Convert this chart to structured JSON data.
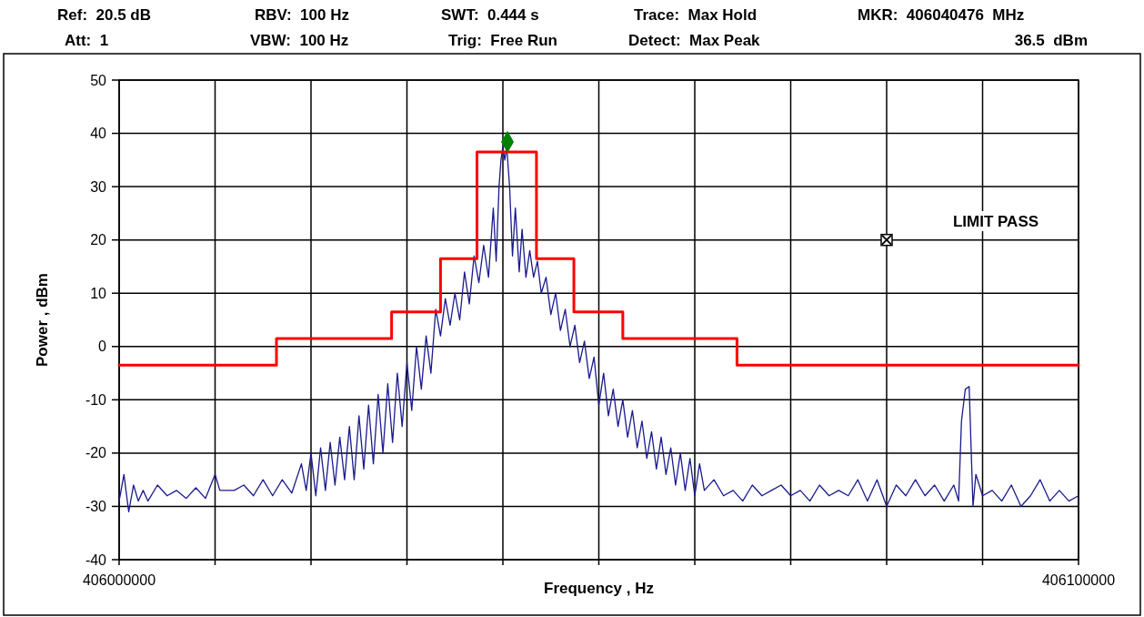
{
  "chart_data": {
    "type": "line",
    "xlabel": "Frequency , Hz",
    "ylabel": "Power , dBm",
    "xlim": [
      406000000,
      406100000
    ],
    "xticks": [
      406000000,
      {
        "value": 406010000,
        "label": null
      },
      {
        "value": 406020000,
        "label": null
      },
      {
        "value": 406030000,
        "label": null
      },
      {
        "value": 406040000,
        "label": null
      },
      {
        "value": 406050000,
        "label": null
      },
      {
        "value": 406060000,
        "label": null
      },
      {
        "value": 406070000,
        "label": null
      },
      {
        "value": 406080000,
        "label": null
      },
      {
        "value": 406090000,
        "label": null
      },
      406100000
    ],
    "ylim": [
      -40,
      50
    ],
    "yticks": [
      -40,
      -30,
      -20,
      -10,
      0,
      10,
      20,
      30,
      40,
      50
    ],
    "grid": true,
    "annotations": [
      "Ref:  20.5 dB",
      "RBV:  100 Hz",
      "SWT:  0.444 s",
      "Trace:  Max Hold",
      "MKR:  406040476  MHz",
      "Att:  1",
      "VBW:  100 Hz",
      "Trig:  Free Run",
      "Detect:  Max Peak",
      "36.5  dBm",
      "LIMIT PASS"
    ],
    "series": [
      {
        "color": "#1a1a8c",
        "marker": "none",
        "line_style": "solid",
        "x": [
          406000000,
          406000500,
          406001000,
          406001500,
          406002000,
          406002500,
          406003000,
          406004000,
          406005000,
          406006000,
          406007000,
          406008000,
          406009000,
          406010000,
          406010500,
          406012000,
          406013000,
          406014000,
          406015000,
          406016000,
          406017000,
          406018000,
          406019000,
          406019500,
          406020000,
          406020500,
          406021000,
          406021500,
          406022000,
          406022500,
          406023000,
          406023500,
          406024000,
          406024500,
          406025000,
          406025500,
          406026000,
          406026500,
          406027000,
          406027500,
          406028000,
          406028500,
          406029000,
          406029500,
          406030000,
          406030500,
          406031000,
          406031500,
          406032000,
          406032500,
          406033000,
          406033500,
          406034000,
          406034500,
          406035000,
          406035500,
          406036000,
          406036500,
          406037000,
          406037500,
          406038000,
          406038500,
          406039000,
          406039300,
          406039600,
          406039800,
          406040000,
          406040200,
          406040400,
          406040700,
          406041000,
          406041300,
          406041700,
          406042000,
          406042400,
          406042800,
          406043200,
          406043600,
          406044000,
          406044500,
          406045000,
          406045500,
          406046000,
          406046500,
          406047000,
          406047500,
          406048000,
          406048500,
          406049000,
          406049500,
          406050000,
          406050500,
          406051000,
          406051500,
          406052000,
          406052500,
          406053000,
          406053500,
          406054000,
          406054500,
          406055000,
          406055500,
          406056000,
          406056500,
          406057000,
          406057500,
          406058000,
          406058500,
          406059000,
          406059500,
          406060000,
          406060500,
          406061000,
          406062000,
          406063000,
          406064000,
          406065000,
          406066000,
          406067000,
          406068000,
          406069000,
          406070000,
          406071000,
          406072000,
          406073000,
          406074000,
          406075000,
          406076000,
          406077000,
          406078000,
          406079000,
          406080000,
          406081000,
          406082000,
          406083000,
          406084000,
          406085000,
          406086000,
          406087000,
          406087500,
          406087800,
          406088200,
          406088600,
          406089000,
          406089300,
          406090000,
          406091000,
          406092000,
          406093000,
          406094000,
          406095000,
          406096000,
          406097000,
          406098000,
          406099000,
          406100000
        ],
        "values": [
          -29,
          -24,
          -31,
          -26,
          -29,
          -27,
          -29,
          -26,
          -28,
          -27,
          -28.5,
          -26.5,
          -28.5,
          -24,
          -27,
          -27,
          -26,
          -28,
          -25,
          -28,
          -25,
          -27.5,
          -22,
          -27,
          -20,
          -28,
          -19,
          -27,
          -18,
          -26,
          -17,
          -25,
          -15,
          -25,
          -13,
          -23,
          -11,
          -22,
          -9,
          -20,
          -7,
          -18,
          -5,
          -15,
          -3,
          -12,
          0,
          -8,
          2,
          -5,
          7,
          2,
          9,
          4,
          10,
          5,
          14,
          8,
          17,
          12,
          19,
          13,
          26,
          16,
          30,
          35,
          37.5,
          35,
          37.5,
          30,
          17,
          26,
          14,
          22,
          13,
          18,
          13,
          16,
          10,
          13,
          6,
          10,
          3,
          7,
          0,
          4,
          -3,
          1,
          -6,
          -2,
          -11,
          -5,
          -13,
          -8,
          -15,
          -10,
          -17,
          -12,
          -19,
          -14,
          -21,
          -16,
          -23,
          -17,
          -24,
          -19,
          -26,
          -20,
          -27,
          -21,
          -28,
          -22,
          -27,
          -25,
          -28,
          -27,
          -29,
          -26,
          -28,
          -27,
          -26,
          -28,
          -27,
          -29,
          -26,
          -28,
          -27,
          -28,
          -25,
          -29,
          -25,
          -30,
          -26,
          -28,
          -25,
          -28,
          -26,
          -29,
          -26,
          -29,
          -14,
          -8,
          -7.5,
          -30,
          -24,
          -28,
          -27,
          -29,
          -26,
          -30,
          -28,
          -25,
          -29,
          -27,
          -29,
          -28
        ]
      },
      {
        "color": "#ff0000",
        "marker": "none",
        "line_style": "solid",
        "x": [
          406000000,
          406016400,
          406016400,
          406028400,
          406028400,
          406033500,
          406033500,
          406037300,
          406037300,
          406043500,
          406043500,
          406047400,
          406047400,
          406052500,
          406052500,
          406064400,
          406064400,
          406100000
        ],
        "values": [
          -3.5,
          -3.5,
          1.5,
          1.5,
          6.5,
          6.5,
          16.5,
          16.5,
          36.5,
          36.5,
          16.5,
          16.5,
          6.5,
          6.5,
          1.5,
          1.5,
          -3.5,
          -3.5
        ]
      },
      {
        "type": "scatter",
        "color": "#008000",
        "marker": "diamond",
        "x": [
          406040476
        ],
        "values": [
          38.4
        ]
      },
      {
        "type": "scatter",
        "color": "#000000",
        "marker": "square",
        "x": [
          406080000
        ],
        "values": [
          20
        ]
      }
    ]
  }
}
